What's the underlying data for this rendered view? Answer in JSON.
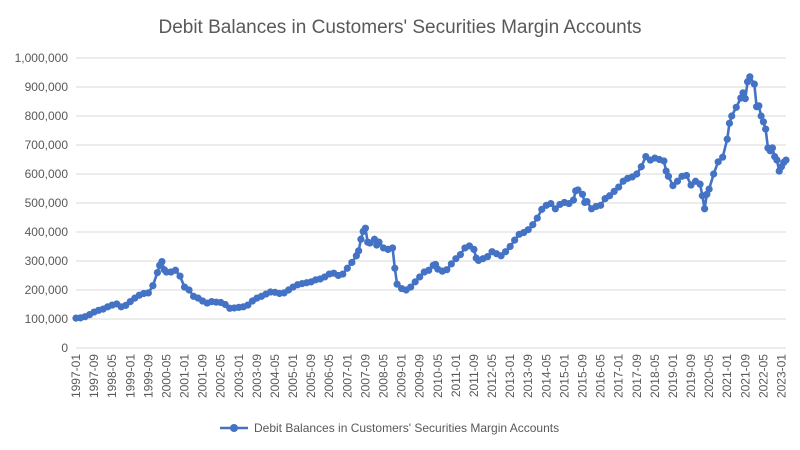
{
  "chart_data": {
    "type": "line",
    "title": "Debit Balances in Customers' Securities Margin Accounts",
    "xlabel": "",
    "ylabel": "",
    "ylim": [
      0,
      1000000
    ],
    "y_ticks": [
      "0",
      "100,000",
      "200,000",
      "300,000",
      "400,000",
      "500,000",
      "600,000",
      "700,000",
      "800,000",
      "900,000",
      "1,000,000"
    ],
    "y_tick_values": [
      0,
      100000,
      200000,
      300000,
      400000,
      500000,
      600000,
      700000,
      800000,
      900000,
      1000000
    ],
    "x_ticks": [
      "1997-01",
      "1997-09",
      "1998-05",
      "1999-01",
      "1999-09",
      "2000-05",
      "2001-01",
      "2001-09",
      "2002-05",
      "2003-01",
      "2003-09",
      "2004-05",
      "2005-01",
      "2005-09",
      "2006-05",
      "2007-01",
      "2007-09",
      "2008-05",
      "2009-01",
      "2009-09",
      "2010-05",
      "2011-01",
      "2011-09",
      "2012-05",
      "2013-01",
      "2013-09",
      "2014-05",
      "2015-01",
      "2015-09",
      "2016-05",
      "2017-01",
      "2017-09",
      "2018-05",
      "2019-01",
      "2019-09",
      "2020-05",
      "2021-01",
      "2021-09",
      "2022-05",
      "2023-01"
    ],
    "grid": true,
    "legend_position": "bottom",
    "series": [
      {
        "name": "Debit Balances in Customers' Securities Margin Accounts",
        "color": "#4472c4",
        "points": [
          [
            "1997-01",
            103000
          ],
          [
            "1997-03",
            104000
          ],
          [
            "1997-05",
            108000
          ],
          [
            "1997-07",
            115000
          ],
          [
            "1997-09",
            124000
          ],
          [
            "1997-11",
            130000
          ],
          [
            "1998-01",
            134000
          ],
          [
            "1998-03",
            142000
          ],
          [
            "1998-05",
            148000
          ],
          [
            "1998-07",
            152000
          ],
          [
            "1998-09",
            142000
          ],
          [
            "1998-11",
            147000
          ],
          [
            "1999-01",
            160000
          ],
          [
            "1999-03",
            172000
          ],
          [
            "1999-05",
            182000
          ],
          [
            "1999-07",
            188000
          ],
          [
            "1999-09",
            190000
          ],
          [
            "1999-11",
            215000
          ],
          [
            "2000-01",
            260000
          ],
          [
            "2000-02",
            285000
          ],
          [
            "2000-03",
            298000
          ],
          [
            "2000-04",
            270000
          ],
          [
            "2000-05",
            262000
          ],
          [
            "2000-07",
            262000
          ],
          [
            "2000-09",
            268000
          ],
          [
            "2000-11",
            248000
          ],
          [
            "2001-01",
            210000
          ],
          [
            "2001-03",
            200000
          ],
          [
            "2001-05",
            178000
          ],
          [
            "2001-07",
            172000
          ],
          [
            "2001-09",
            162000
          ],
          [
            "2001-11",
            155000
          ],
          [
            "2002-01",
            160000
          ],
          [
            "2002-03",
            158000
          ],
          [
            "2002-05",
            157000
          ],
          [
            "2002-07",
            150000
          ],
          [
            "2002-09",
            137000
          ],
          [
            "2002-11",
            138000
          ],
          [
            "2003-01",
            140000
          ],
          [
            "2003-03",
            142000
          ],
          [
            "2003-05",
            148000
          ],
          [
            "2003-07",
            162000
          ],
          [
            "2003-09",
            172000
          ],
          [
            "2003-11",
            178000
          ],
          [
            "2004-01",
            186000
          ],
          [
            "2004-03",
            193000
          ],
          [
            "2004-05",
            192000
          ],
          [
            "2004-07",
            188000
          ],
          [
            "2004-09",
            190000
          ],
          [
            "2004-11",
            200000
          ],
          [
            "2005-01",
            210000
          ],
          [
            "2005-03",
            218000
          ],
          [
            "2005-05",
            222000
          ],
          [
            "2005-07",
            225000
          ],
          [
            "2005-09",
            228000
          ],
          [
            "2005-11",
            235000
          ],
          [
            "2006-01",
            238000
          ],
          [
            "2006-03",
            245000
          ],
          [
            "2006-05",
            255000
          ],
          [
            "2006-07",
            258000
          ],
          [
            "2006-09",
            250000
          ],
          [
            "2006-11",
            255000
          ],
          [
            "2007-01",
            275000
          ],
          [
            "2007-03",
            295000
          ],
          [
            "2007-05",
            318000
          ],
          [
            "2007-06",
            335000
          ],
          [
            "2007-07",
            375000
          ],
          [
            "2007-08",
            402000
          ],
          [
            "2007-09",
            413000
          ],
          [
            "2007-10",
            365000
          ],
          [
            "2007-11",
            362000
          ],
          [
            "2008-01",
            375000
          ],
          [
            "2008-02",
            355000
          ],
          [
            "2008-03",
            365000
          ],
          [
            "2008-05",
            345000
          ],
          [
            "2008-07",
            340000
          ],
          [
            "2008-09",
            345000
          ],
          [
            "2008-10",
            275000
          ],
          [
            "2008-11",
            220000
          ],
          [
            "2009-01",
            205000
          ],
          [
            "2009-03",
            200000
          ],
          [
            "2009-05",
            210000
          ],
          [
            "2009-07",
            228000
          ],
          [
            "2009-09",
            245000
          ],
          [
            "2009-11",
            262000
          ],
          [
            "2010-01",
            268000
          ],
          [
            "2010-03",
            285000
          ],
          [
            "2010-04",
            288000
          ],
          [
            "2010-05",
            272000
          ],
          [
            "2010-07",
            265000
          ],
          [
            "2010-09",
            270000
          ],
          [
            "2010-11",
            290000
          ],
          [
            "2011-01",
            308000
          ],
          [
            "2011-03",
            322000
          ],
          [
            "2011-05",
            345000
          ],
          [
            "2011-07",
            352000
          ],
          [
            "2011-09",
            340000
          ],
          [
            "2011-10",
            310000
          ],
          [
            "2011-11",
            302000
          ],
          [
            "2012-01",
            308000
          ],
          [
            "2012-03",
            315000
          ],
          [
            "2012-05",
            332000
          ],
          [
            "2012-07",
            325000
          ],
          [
            "2012-09",
            318000
          ],
          [
            "2012-11",
            332000
          ],
          [
            "2013-01",
            350000
          ],
          [
            "2013-03",
            372000
          ],
          [
            "2013-05",
            392000
          ],
          [
            "2013-07",
            398000
          ],
          [
            "2013-09",
            408000
          ],
          [
            "2013-11",
            425000
          ],
          [
            "2014-01",
            448000
          ],
          [
            "2014-03",
            478000
          ],
          [
            "2014-05",
            492000
          ],
          [
            "2014-07",
            498000
          ],
          [
            "2014-09",
            480000
          ],
          [
            "2014-11",
            495000
          ],
          [
            "2015-01",
            502000
          ],
          [
            "2015-03",
            498000
          ],
          [
            "2015-05",
            510000
          ],
          [
            "2015-06",
            542000
          ],
          [
            "2015-07",
            545000
          ],
          [
            "2015-09",
            530000
          ],
          [
            "2015-10",
            502000
          ],
          [
            "2015-11",
            505000
          ],
          [
            "2016-01",
            480000
          ],
          [
            "2016-03",
            488000
          ],
          [
            "2016-05",
            492000
          ],
          [
            "2016-07",
            515000
          ],
          [
            "2016-09",
            525000
          ],
          [
            "2016-11",
            540000
          ],
          [
            "2017-01",
            555000
          ],
          [
            "2017-03",
            575000
          ],
          [
            "2017-05",
            585000
          ],
          [
            "2017-07",
            590000
          ],
          [
            "2017-09",
            600000
          ],
          [
            "2017-11",
            625000
          ],
          [
            "2018-01",
            660000
          ],
          [
            "2018-03",
            648000
          ],
          [
            "2018-05",
            655000
          ],
          [
            "2018-07",
            650000
          ],
          [
            "2018-09",
            645000
          ],
          [
            "2018-10",
            610000
          ],
          [
            "2018-11",
            592000
          ],
          [
            "2019-01",
            560000
          ],
          [
            "2019-03",
            575000
          ],
          [
            "2019-05",
            592000
          ],
          [
            "2019-07",
            595000
          ],
          [
            "2019-09",
            562000
          ],
          [
            "2019-11",
            575000
          ],
          [
            "2020-01",
            565000
          ],
          [
            "2020-02",
            525000
          ],
          [
            "2020-03",
            480000
          ],
          [
            "2020-04",
            530000
          ],
          [
            "2020-05",
            548000
          ],
          [
            "2020-07",
            600000
          ],
          [
            "2020-09",
            642000
          ],
          [
            "2020-11",
            658000
          ],
          [
            "2021-01",
            720000
          ],
          [
            "2021-02",
            775000
          ],
          [
            "2021-03",
            800000
          ],
          [
            "2021-05",
            830000
          ],
          [
            "2021-07",
            862000
          ],
          [
            "2021-08",
            880000
          ],
          [
            "2021-09",
            860000
          ],
          [
            "2021-10",
            918000
          ],
          [
            "2021-11",
            935000
          ],
          [
            "2022-01",
            910000
          ],
          [
            "2022-02",
            832000
          ],
          [
            "2022-03",
            835000
          ],
          [
            "2022-04",
            800000
          ],
          [
            "2022-05",
            780000
          ],
          [
            "2022-06",
            755000
          ],
          [
            "2022-07",
            690000
          ],
          [
            "2022-08",
            680000
          ],
          [
            "2022-09",
            690000
          ],
          [
            "2022-10",
            660000
          ],
          [
            "2022-11",
            648000
          ],
          [
            "2022-12",
            610000
          ],
          [
            "2023-01",
            625000
          ],
          [
            "2023-02",
            640000
          ],
          [
            "2023-03",
            648000
          ]
        ]
      }
    ]
  }
}
